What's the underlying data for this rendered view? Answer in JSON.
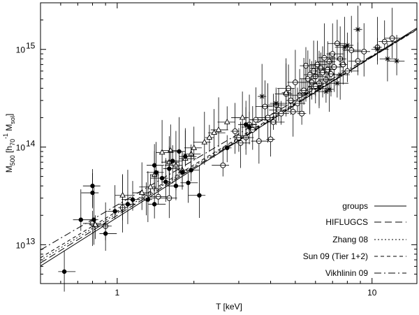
{
  "chart_data": {
    "type": "scatter",
    "title": "",
    "xlabel": "T [keV]",
    "ylabel": {
      "main": "M",
      "sub": "500",
      "bracket_open": " [h",
      "h_sub": "70",
      "h_sup": "-1",
      "unit": " M",
      "unit_sub": "sol",
      "bracket_close": "]"
    },
    "x_scale": "log",
    "y_scale": "log",
    "xlim": [
      0.5,
      15
    ],
    "ylim": [
      4000000000000.0,
      3000000000000000.0
    ],
    "x_ticks": [
      {
        "value": 1,
        "label": "1"
      },
      {
        "value": 10,
        "label": "10"
      }
    ],
    "y_ticks": [
      {
        "value": 10000000000000.0,
        "base": "10",
        "exp": "13"
      },
      {
        "value": 100000000000000.0,
        "base": "10",
        "exp": "14"
      },
      {
        "value": 1000000000000000.0,
        "base": "10",
        "exp": "15"
      }
    ],
    "legend_position": "bottom-right",
    "relations": [
      {
        "name": "groups",
        "style": "solid",
        "A": 19000000000000.0,
        "B": 1.65
      },
      {
        "name": "HIFLUGCS",
        "style": "longdash",
        "A": 20000000000000.0,
        "B": 1.62
      },
      {
        "name": "Zhang 08",
        "style": "dotted",
        "A": 21000000000000.0,
        "B": 1.6
      },
      {
        "name": "Sun 09 (Tier 1+2)",
        "style": "shortdash",
        "A": 22000000000000.0,
        "B": 1.58
      },
      {
        "name": "Vikhlinin 09",
        "style": "dashdot",
        "A": 25500000000000.0,
        "B": 1.53
      }
    ],
    "groups_filled": [
      [
        0.62,
        5300000000000.0
      ],
      [
        0.72,
        18000000000000.0
      ],
      [
        0.8,
        40000000000000.0
      ],
      [
        0.8,
        34000000000000.0
      ],
      [
        0.81,
        18000000000000.0
      ],
      [
        0.9,
        13000000000000.0
      ],
      [
        0.98,
        22000000000000.0
      ],
      [
        1.1,
        26000000000000.0
      ],
      [
        1.15,
        29000000000000.0
      ],
      [
        1.32,
        29000000000000.0
      ],
      [
        1.4,
        26000000000000.0
      ],
      [
        1.4,
        65000000000000.0
      ],
      [
        1.42,
        55000000000000.0
      ],
      [
        1.5,
        48000000000000.0
      ],
      [
        1.55,
        44000000000000.0
      ],
      [
        1.6,
        60000000000000.0
      ],
      [
        1.65,
        72000000000000.0
      ],
      [
        1.7,
        40000000000000.0
      ],
      [
        1.75,
        90000000000000.0
      ],
      [
        1.8,
        55000000000000.0
      ],
      [
        1.85,
        80000000000000.0
      ],
      [
        1.9,
        43000000000000.0
      ],
      [
        1.95,
        58000000000000.0
      ],
      [
        2.1,
        32000000000000.0
      ],
      [
        2.7,
        98000000000000.0
      ],
      [
        3.2,
        170000000000000.0
      ],
      [
        3.3,
        160000000000000.0
      ]
    ],
    "clusters_open": [
      [
        0.8,
        16500000000000.0
      ],
      [
        0.9,
        15500000000000.0
      ],
      [
        1.05,
        24000000000000.0
      ],
      [
        1.3,
        30000000000000.0
      ],
      [
        1.45,
        31000000000000.0
      ],
      [
        1.6,
        30000000000000.0
      ],
      [
        2.6,
        65000000000000.0
      ],
      [
        2.9,
        145000000000000.0
      ],
      [
        3.0,
        125000000000000.0
      ],
      [
        3.05,
        110000000000000.0
      ],
      [
        3.2,
        125000000000000.0
      ],
      [
        3.3,
        170000000000000.0
      ],
      [
        3.4,
        150000000000000.0
      ],
      [
        3.5,
        190000000000000.0
      ],
      [
        3.6,
        115000000000000.0
      ],
      [
        3.8,
        260000000000000.0
      ],
      [
        3.9,
        200000000000000.0
      ],
      [
        4.0,
        120000000000000.0
      ],
      [
        4.1,
        180000000000000.0
      ],
      [
        4.2,
        270000000000000.0
      ],
      [
        4.3,
        240000000000000.0
      ],
      [
        4.6,
        350000000000000.0
      ],
      [
        4.8,
        300000000000000.0
      ],
      [
        4.9,
        230000000000000.0
      ],
      [
        5.0,
        460000000000000.0
      ],
      [
        5.1,
        280000000000000.0
      ],
      [
        5.2,
        340000000000000.0
      ],
      [
        5.3,
        220000000000000.0
      ],
      [
        5.5,
        680000000000000.0
      ],
      [
        5.6,
        500000000000000.0
      ],
      [
        5.7,
        390000000000000.0
      ],
      [
        5.8,
        460000000000000.0
      ],
      [
        5.9,
        600000000000000.0
      ],
      [
        6.0,
        530000000000000.0
      ],
      [
        6.1,
        700000000000000.0
      ],
      [
        6.2,
        450000000000000.0
      ],
      [
        6.3,
        640000000000000.0
      ],
      [
        6.4,
        580000000000000.0
      ],
      [
        6.5,
        820000000000000.0
      ],
      [
        6.6,
        490000000000000.0
      ],
      [
        6.7,
        620000000000000.0
      ],
      [
        6.8,
        750000000000000.0
      ],
      [
        6.9,
        560000000000000.0
      ],
      [
        7.0,
        900000000000000.0
      ],
      [
        7.1,
        660000000000000.0
      ],
      [
        7.3,
        1150000000000000.0
      ],
      [
        7.5,
        800000000000000.0
      ],
      [
        7.7,
        700000000000000.0
      ],
      [
        8.0,
        600000000000000.0
      ],
      [
        8.3,
        980000000000000.0
      ],
      [
        8.8,
        760000000000000.0
      ],
      [
        9.3,
        950000000000000.0
      ],
      [
        10.5,
        1050000000000000.0
      ],
      [
        11.2,
        1200000000000000.0
      ],
      [
        12.0,
        1300000000000000.0
      ],
      [
        4.4,
        220000000000000.0
      ],
      [
        4.7,
        400000000000000.0
      ],
      [
        5.4,
        380000000000000.0
      ],
      [
        5.7,
        550000000000000.0
      ],
      [
        6.0,
        420000000000000.0
      ]
    ],
    "clusters_triangle": [
      [
        0.82,
        16000000000000.0
      ],
      [
        1.05,
        32000000000000.0
      ],
      [
        1.25,
        34000000000000.0
      ],
      [
        1.35,
        39000000000000.0
      ],
      [
        1.4,
        52000000000000.0
      ],
      [
        1.5,
        88000000000000.0
      ],
      [
        1.6,
        70000000000000.0
      ],
      [
        1.62,
        92000000000000.0
      ],
      [
        1.7,
        65000000000000.0
      ],
      [
        1.8,
        58000000000000.0
      ],
      [
        1.85,
        76000000000000.0
      ],
      [
        1.95,
        85000000000000.0
      ],
      [
        2.0,
        98000000000000.0
      ],
      [
        2.2,
        112000000000000.0
      ],
      [
        2.3,
        125000000000000.0
      ],
      [
        2.4,
        140000000000000.0
      ],
      [
        2.5,
        150000000000000.0
      ],
      [
        2.7,
        180000000000000.0
      ],
      [
        3.1,
        200000000000000.0
      ],
      [
        4.6,
        360000000000000.0
      ]
    ],
    "clusters_star": [
      [
        3.7,
        330000000000000.0
      ],
      [
        4.2,
        280000000000000.0
      ],
      [
        5.5,
        350000000000000.0
      ],
      [
        6.2,
        400000000000000.0
      ],
      [
        6.6,
        370000000000000.0
      ],
      [
        6.8,
        390000000000000.0
      ],
      [
        7.3,
        450000000000000.0
      ],
      [
        7.5,
        550000000000000.0
      ],
      [
        7.8,
        1050000000000000.0
      ],
      [
        8.0,
        1100000000000000.0
      ],
      [
        8.8,
        1600000000000000.0
      ],
      [
        10.5,
        1000000000000000.0
      ],
      [
        11.5,
        800000000000000.0
      ],
      [
        12.5,
        760000000000000.0
      ]
    ]
  }
}
